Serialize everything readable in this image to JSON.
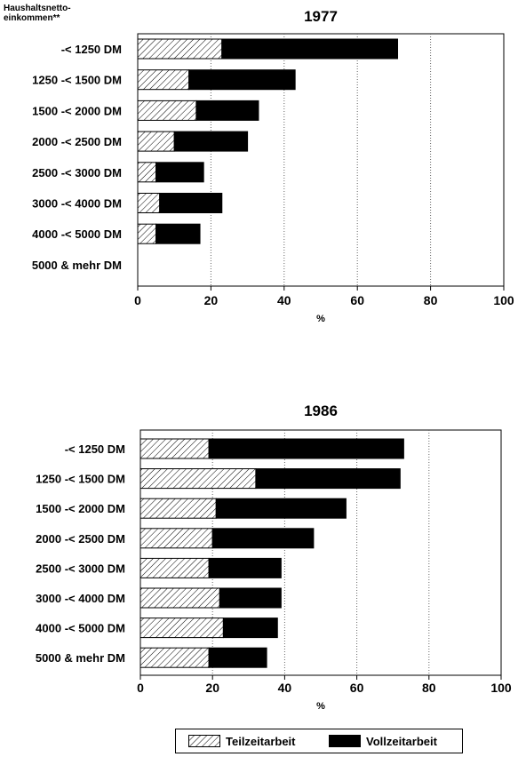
{
  "header": {
    "line1": "Haushaltsnetto-",
    "line2": "einkommen**"
  },
  "legend": {
    "items": [
      {
        "label": "Teilzeitarbeit",
        "pattern": "hatch"
      },
      {
        "label": "Vollzeitarbeit",
        "color": "#000000"
      }
    ]
  },
  "chart_data": [
    {
      "type": "bar",
      "orientation": "horizontal",
      "stacked": true,
      "title": "1977",
      "xlabel": "%",
      "xlim": [
        0,
        100
      ],
      "xticks": [
        0,
        20,
        40,
        60,
        80,
        100
      ],
      "grid": "vertical dotted",
      "categories": [
        "-< 1250 DM",
        "1250 -< 1500 DM",
        "1500 -< 2000 DM",
        "2000 -< 2500 DM",
        "2500 -< 3000 DM",
        "3000 -< 4000 DM",
        "4000 -< 5000 DM",
        "5000 & mehr  DM"
      ],
      "series": [
        {
          "name": "Teilzeitarbeit",
          "values": [
            23,
            14,
            16,
            10,
            5,
            6,
            5,
            0
          ]
        },
        {
          "name": "Vollzeitarbeit",
          "values": [
            48,
            29,
            17,
            20,
            13,
            17,
            12,
            0
          ]
        }
      ]
    },
    {
      "type": "bar",
      "orientation": "horizontal",
      "stacked": true,
      "title": "1986",
      "xlabel": "%",
      "xlim": [
        0,
        100
      ],
      "xticks": [
        0,
        20,
        40,
        60,
        80,
        100
      ],
      "grid": "vertical dotted",
      "categories": [
        "-< 1250 DM",
        "1250 -< 1500 DM",
        "1500 -< 2000 DM",
        "2000 -< 2500 DM",
        "2500 -< 3000 DM",
        "3000 -< 4000 DM",
        "4000 -< 5000 DM",
        "5000 & mehr  DM"
      ],
      "series": [
        {
          "name": "Teilzeitarbeit",
          "values": [
            19,
            32,
            21,
            20,
            19,
            22,
            23,
            19
          ]
        },
        {
          "name": "Vollzeitarbeit",
          "values": [
            54,
            40,
            36,
            28,
            20,
            17,
            15,
            16
          ]
        }
      ]
    }
  ]
}
